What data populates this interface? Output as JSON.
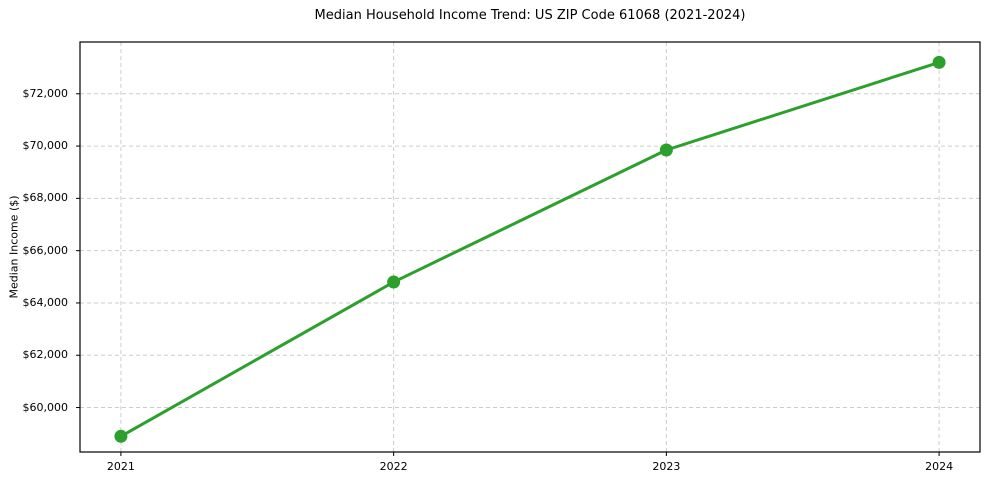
{
  "chart_data": {
    "type": "line",
    "title": "Median Household Income Trend: US ZIP Code 61068 (2021-2024)",
    "xlabel": "",
    "ylabel": "Median Income ($)",
    "x": [
      2021,
      2022,
      2023,
      2024
    ],
    "values": [
      58900,
      64800,
      69850,
      73200
    ],
    "x_ticks": [
      {
        "value": 2021,
        "label": "2021"
      },
      {
        "value": 2022,
        "label": "2022"
      },
      {
        "value": 2023,
        "label": "2023"
      },
      {
        "value": 2024,
        "label": "2024"
      }
    ],
    "y_ticks": [
      {
        "value": 60000,
        "label": "$60,000"
      },
      {
        "value": 62000,
        "label": "$62,000"
      },
      {
        "value": 64000,
        "label": "$64,000"
      },
      {
        "value": 66000,
        "label": "$66,000"
      },
      {
        "value": 68000,
        "label": "$68,000"
      },
      {
        "value": 70000,
        "label": "$70,000"
      },
      {
        "value": 72000,
        "label": "$72,000"
      }
    ],
    "xlim": [
      2020.85,
      2024.15
    ],
    "ylim": [
      58300,
      73980
    ],
    "grid": {
      "visible": true,
      "style": "dashed",
      "color": "#cccccc"
    },
    "legend": "none",
    "line_color": "#2ca02c",
    "marker": {
      "shape": "circle",
      "color": "#2ca02c",
      "diameter": 13
    },
    "background_color": "#ffffff",
    "spine_color": "#000000"
  }
}
